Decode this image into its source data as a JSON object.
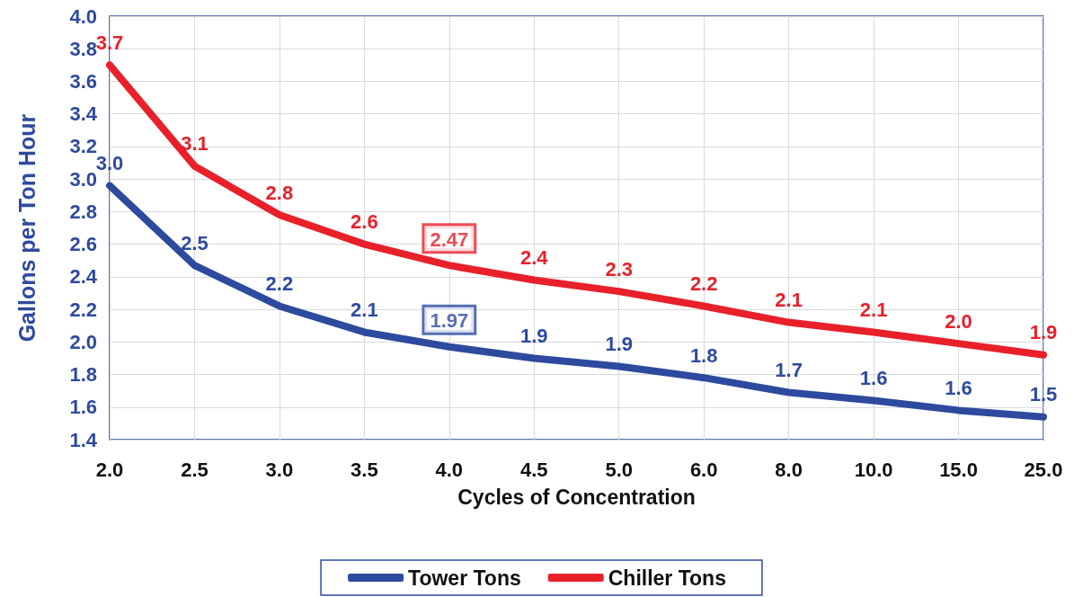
{
  "chart_data": {
    "type": "line",
    "xlabel": "Cycles of Concentration",
    "ylabel": "Gallons per Ton Hour",
    "categories": [
      "2.0",
      "2.5",
      "3.0",
      "3.5",
      "4.0",
      "4.5",
      "5.0",
      "6.0",
      "8.0",
      "10.0",
      "15.0",
      "25.0"
    ],
    "series": [
      {
        "name": "Tower Tons",
        "color": "#2e4a9e",
        "values": [
          2.96,
          2.47,
          2.22,
          2.06,
          1.97,
          1.9,
          1.85,
          1.78,
          1.69,
          1.64,
          1.58,
          1.54
        ],
        "value_labels": [
          "3.0",
          "2.5",
          "2.2",
          "2.1",
          null,
          "1.9",
          "1.9",
          "1.8",
          "1.7",
          "1.6",
          "1.6",
          "1.5"
        ]
      },
      {
        "name": "Chiller Tons",
        "color": "#e8202a",
        "values": [
          3.7,
          3.08,
          2.78,
          2.6,
          2.47,
          2.38,
          2.31,
          2.22,
          2.12,
          2.06,
          1.99,
          1.92
        ],
        "value_labels": [
          "3.7",
          "3.1",
          "2.8",
          "2.6",
          null,
          "2.4",
          "2.3",
          "2.2",
          "2.1",
          "2.1",
          "2.0",
          "1.9"
        ]
      }
    ],
    "annotations": [
      {
        "text": "2.47",
        "x": "4.0",
        "y": 2.47
      },
      {
        "text": "1.97",
        "x": "4.0",
        "y": 1.97
      }
    ],
    "ylim": [
      1.4,
      4.0
    ],
    "yticks": [
      1.4,
      1.6,
      1.8,
      {
        "value": 2,
        "label": "2.0"
      },
      2.2,
      2.4,
      2.6,
      2.8,
      {
        "value": 3,
        "label": "3.0"
      },
      3.2,
      3.4,
      3.6,
      3.8,
      {
        "value": 4,
        "label": "4.0"
      }
    ],
    "grid": true,
    "legend": "bottom",
    "marker": "none",
    "line_style": "solid"
  }
}
